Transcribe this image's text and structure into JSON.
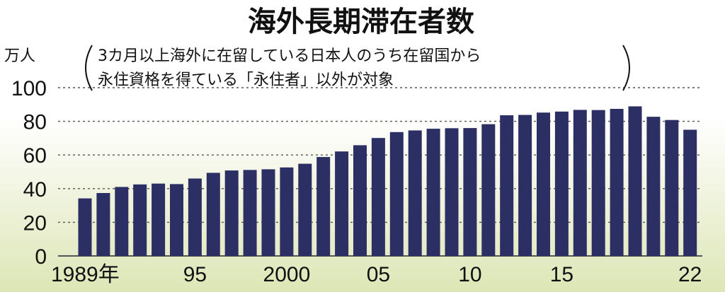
{
  "chart_data": {
    "type": "bar",
    "title": "海外長期滞在者数",
    "subtitle_line1": "3カ月以上海外に在留している日本人のうち在留国から",
    "subtitle_line2": "永住資格を得ている「永住者」以外が対象",
    "unit": "万人",
    "ylim": [
      0,
      100
    ],
    "yticks": [
      "0",
      "20",
      "40",
      "60",
      "80",
      "100"
    ],
    "grid": true,
    "x_labels": [
      {
        "year": 1989,
        "label": "1989年"
      },
      {
        "year": 1995,
        "label": "95"
      },
      {
        "year": 2000,
        "label": "2000"
      },
      {
        "year": 2005,
        "label": "05"
      },
      {
        "year": 2010,
        "label": "10"
      },
      {
        "year": 2015,
        "label": "15"
      },
      {
        "year": 2022,
        "label": "22"
      }
    ],
    "categories": [
      1989,
      1990,
      1991,
      1992,
      1993,
      1994,
      1995,
      1996,
      1997,
      1998,
      1999,
      2000,
      2001,
      2002,
      2003,
      2004,
      2005,
      2006,
      2007,
      2008,
      2009,
      2010,
      2011,
      2012,
      2013,
      2014,
      2015,
      2016,
      2017,
      2018,
      2019,
      2020,
      2021,
      2022
    ],
    "values": [
      34.2,
      37.4,
      41.0,
      42.5,
      43.0,
      42.7,
      46.0,
      49.4,
      50.8,
      51.1,
      51.5,
      52.6,
      54.8,
      58.8,
      62.1,
      65.8,
      70.1,
      73.6,
      74.6,
      75.6,
      75.9,
      76.0,
      78.3,
      83.6,
      83.8,
      85.2,
      85.8,
      86.8,
      86.7,
      87.4,
      88.9,
      82.7,
      80.8,
      75.0
    ],
    "bar_color": "#2c2f63"
  }
}
